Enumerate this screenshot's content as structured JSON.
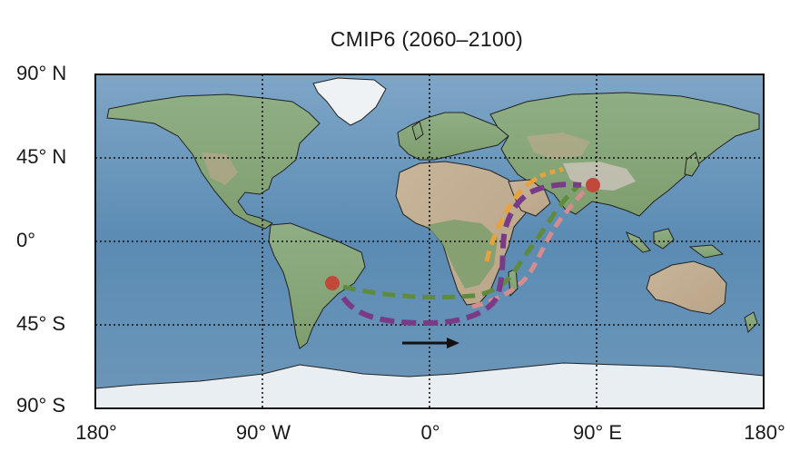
{
  "title": "CMIP6 (2060–2100)",
  "y_ticks": [
    "90° N",
    "45° N",
    "0°",
    "45° S",
    "90° S"
  ],
  "x_ticks": [
    "180°",
    "90° W",
    "0°",
    "90° E",
    "180°"
  ],
  "map": {
    "projection": "equirectangular",
    "lon_range": [
      -180,
      180
    ],
    "lat_range": [
      -90,
      90
    ],
    "gridlines": "dotted, every 90° longitude and 45° latitude",
    "ocean_color": "#5f8fb6",
    "land_color": "#8aa77c",
    "ice_color": "#e8eef4"
  },
  "markers": [
    {
      "name": "south-america-origin",
      "lon": -58,
      "lat": -23,
      "color": "#c1493c"
    },
    {
      "name": "tibetan-plateau-destination",
      "lon": 89,
      "lat": 30,
      "color": "#c1493c"
    }
  ],
  "pathways": [
    {
      "name": "green",
      "color": "#5f8b3c"
    },
    {
      "name": "purple",
      "color": "#7a3b86"
    },
    {
      "name": "orange",
      "color": "#e8a23a"
    },
    {
      "name": "pink",
      "color": "#d48c8c"
    }
  ],
  "arrow": {
    "direction": "eastward",
    "color": "#111111"
  }
}
